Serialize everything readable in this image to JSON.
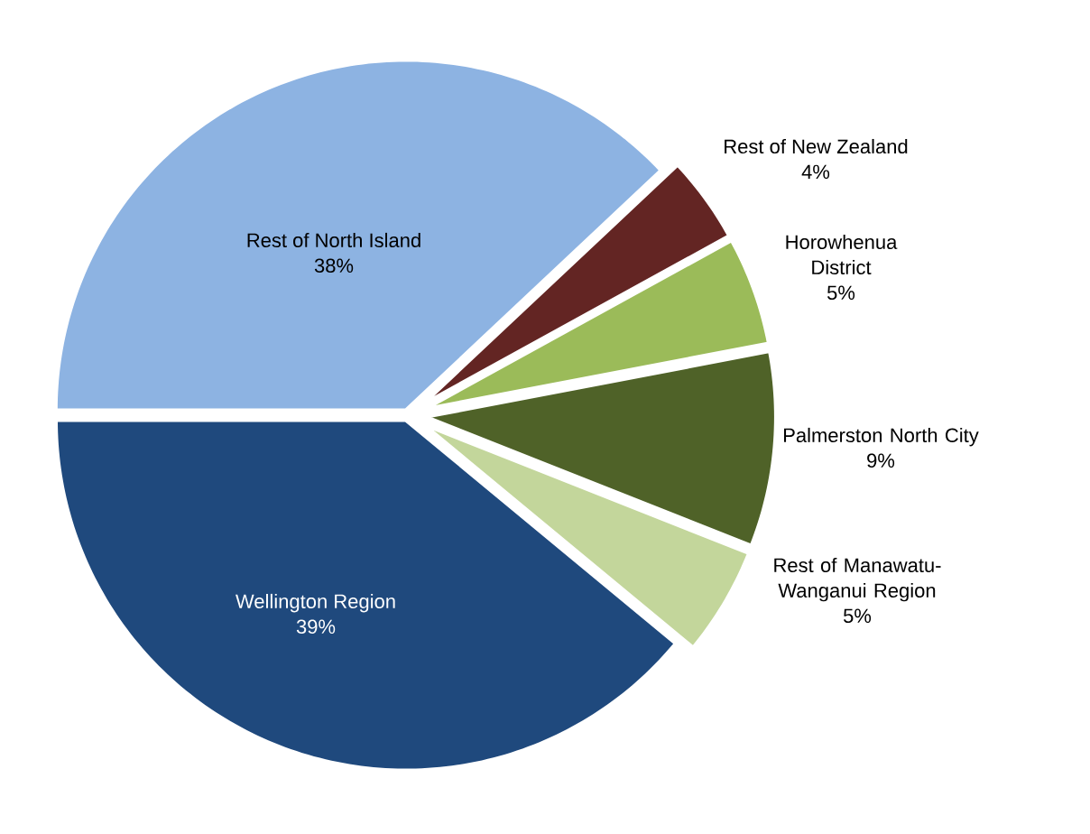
{
  "chart_data": {
    "type": "pie",
    "categories": [
      "Rest of North Island",
      "Rest of New Zealand",
      "Horowhenua District",
      "Palmerston North City",
      "Rest of Manawatu-Wanganui Region",
      "Wellington Region"
    ],
    "values": [
      38,
      4,
      5,
      9,
      5,
      39
    ],
    "value_labels": [
      "38%",
      "4%",
      "5%",
      "9%",
      "5%",
      "39%"
    ],
    "colors": [
      "#8db3e2",
      "#632523",
      "#9bbb59",
      "#4f6228",
      "#c3d69b",
      "#1f497d"
    ]
  }
}
